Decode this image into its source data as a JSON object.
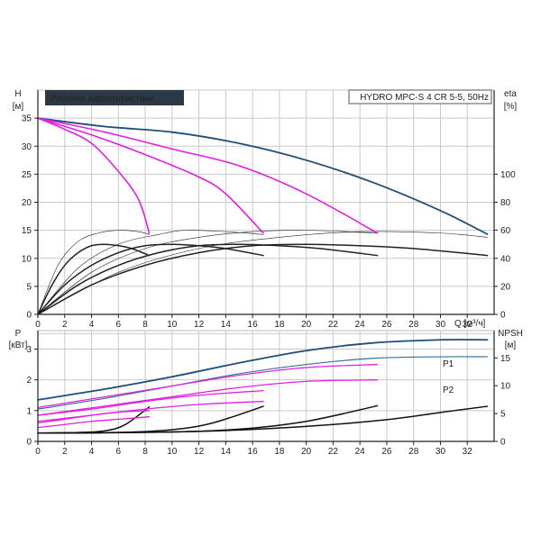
{
  "header": {
    "title": "Рабочие характеристики",
    "model": "HYDRO MPC-S 4 CR 5-5, 50Hz"
  },
  "colors": {
    "pump_line": "#1f4e79",
    "p2_line": "#3a6f95",
    "reduced_speed": "#e020e0",
    "efficiency": "#222222",
    "npsh": "#111111",
    "title_bg": "#2b3947",
    "title_fg": "#ffffff"
  },
  "chart_data": [
    {
      "type": "line",
      "title": "Рабочие характеристики",
      "y_label_name": "H",
      "y_label_unit": "[м]",
      "y2_label_name": "eta",
      "y2_label_unit": "[%]",
      "x_label": "Q [м³/ч]",
      "x_ticks": [
        "0",
        "2",
        "4",
        "6",
        "8",
        "10",
        "12",
        "14",
        "16",
        "18",
        "20",
        "22",
        "24",
        "26",
        "28",
        "30",
        "32"
      ],
      "y_ticks": [
        "0",
        "5",
        "10",
        "15",
        "20",
        "25",
        "30",
        "35"
      ],
      "y2_ticks": [
        "0",
        "20",
        "40",
        "60",
        "80",
        "100"
      ],
      "xlim": [
        0,
        34
      ],
      "ylim": [
        0,
        40
      ],
      "y2lim": [
        0,
        160
      ],
      "grid": true,
      "head_series": [
        {
          "key": "h4",
          "group": "full",
          "x": [
            0,
            5,
            10,
            15,
            20,
            25,
            30,
            33.5
          ],
          "y": [
            35,
            33.5,
            32.5,
            30.5,
            27.5,
            23.5,
            18.5,
            14.3
          ]
        },
        {
          "key": "h3",
          "group": "reduced",
          "x": [
            0,
            5,
            10,
            15,
            20,
            25.3
          ],
          "y": [
            35,
            32.5,
            29.5,
            26.5,
            21.5,
            14.5
          ]
        },
        {
          "key": "h2",
          "group": "reduced",
          "x": [
            0,
            4,
            8,
            12,
            14,
            16.8
          ],
          "y": [
            35,
            32,
            28.5,
            24.5,
            21.5,
            14.5
          ]
        },
        {
          "key": "h1",
          "group": "reduced",
          "x": [
            0,
            2,
            4,
            6,
            7.5,
            8.3
          ],
          "y": [
            35,
            33,
            30.5,
            25.5,
            20.5,
            14.5
          ]
        }
      ],
      "efficiency_series": [
        {
          "key": "e1",
          "x": [
            0,
            1,
            2,
            3,
            4,
            5,
            6,
            7,
            8.3
          ],
          "y": [
            0,
            20,
            35,
            44,
            49,
            50,
            49,
            47,
            42
          ]
        },
        {
          "key": "e2",
          "x": [
            0,
            2,
            4,
            6,
            8,
            10,
            12,
            14,
            16.8
          ],
          "y": [
            0,
            21,
            35,
            44,
            49,
            50,
            49,
            47,
            42
          ]
        },
        {
          "key": "e3",
          "x": [
            0,
            3,
            6,
            9,
            12,
            15,
            18,
            21,
            25.3
          ],
          "y": [
            0,
            21,
            35,
            44,
            49,
            50,
            49,
            47,
            42
          ]
        },
        {
          "key": "e4",
          "x": [
            0,
            4,
            8,
            12,
            16,
            20,
            24,
            28,
            33.5
          ],
          "y": [
            0,
            21,
            35,
            44,
            49,
            50,
            49,
            47,
            42
          ]
        },
        {
          "key": "t1",
          "x": [
            0,
            1.5,
            3,
            4.5,
            6,
            7.5,
            8.3
          ],
          "y": [
            0,
            35,
            52,
            58,
            60,
            59,
            57
          ]
        },
        {
          "key": "t2",
          "x": [
            0,
            3,
            6,
            9,
            11,
            14,
            16.8
          ],
          "y": [
            0,
            33,
            50,
            57,
            60,
            59,
            57
          ]
        },
        {
          "key": "t3",
          "x": [
            0,
            4,
            8,
            12,
            16,
            20,
            25.3
          ],
          "y": [
            0,
            30,
            47,
            55,
            59,
            60,
            58
          ]
        },
        {
          "key": "t4",
          "x": [
            0,
            6,
            12,
            18,
            24,
            30,
            33.5
          ],
          "y": [
            0,
            30,
            47,
            55,
            59,
            58,
            55
          ]
        }
      ]
    },
    {
      "type": "line",
      "y_label_name": "P",
      "y_label_unit": "[кВт]",
      "y2_label_name": "NPSH",
      "y2_label_unit": "[м]",
      "x_ticks": [
        "0",
        "2",
        "4",
        "6",
        "8",
        "10",
        "12",
        "14",
        "16",
        "18",
        "20",
        "22",
        "24",
        "26",
        "28",
        "30",
        "32"
      ],
      "y_ticks": [
        "0",
        "1",
        "2",
        "3"
      ],
      "y2_ticks": [
        "0",
        "5",
        "10",
        "15"
      ],
      "xlim": [
        0,
        34
      ],
      "ylim": [
        0,
        3.6
      ],
      "y2lim": [
        0,
        19.9
      ],
      "grid": true,
      "series_labels": {
        "P1": "P1",
        "P2": "P2"
      },
      "power_series": [
        {
          "key": "P1",
          "group": "full",
          "x": [
            0,
            5,
            10,
            15,
            20,
            25,
            30,
            33.5
          ],
          "y": [
            1.35,
            1.7,
            2.1,
            2.55,
            2.95,
            3.2,
            3.3,
            3.3
          ]
        },
        {
          "key": "P2",
          "group": "full_p2",
          "x": [
            0,
            5,
            10,
            15,
            20,
            25,
            30,
            33.5
          ],
          "y": [
            1.05,
            1.4,
            1.8,
            2.2,
            2.5,
            2.7,
            2.75,
            2.75
          ]
        },
        {
          "key": "p3a",
          "group": "reduced",
          "x": [
            0,
            5,
            10,
            15,
            20,
            25.3
          ],
          "y": [
            1.1,
            1.45,
            1.8,
            2.15,
            2.4,
            2.5
          ]
        },
        {
          "key": "p3b",
          "group": "reduced",
          "x": [
            0,
            5,
            10,
            15,
            20,
            25.3
          ],
          "y": [
            0.85,
            1.15,
            1.45,
            1.75,
            1.95,
            2.0
          ]
        },
        {
          "key": "p2a",
          "group": "reduced",
          "x": [
            0,
            4,
            8,
            12,
            16.8
          ],
          "y": [
            0.85,
            1.05,
            1.3,
            1.5,
            1.65
          ]
        },
        {
          "key": "p2b",
          "group": "reduced",
          "x": [
            0,
            4,
            8,
            12,
            16.8
          ],
          "y": [
            0.65,
            0.85,
            1.05,
            1.2,
            1.3
          ]
        },
        {
          "key": "p1a",
          "group": "reduced",
          "x": [
            0,
            2,
            4,
            6,
            8.3
          ],
          "y": [
            0.6,
            0.72,
            0.85,
            0.95,
            1.0
          ]
        },
        {
          "key": "p1b",
          "group": "reduced",
          "x": [
            0,
            2,
            4,
            6,
            8.3
          ],
          "y": [
            0.45,
            0.55,
            0.65,
            0.72,
            0.8
          ]
        }
      ],
      "npsh_series": [
        {
          "key": "n1",
          "x": [
            0,
            3,
            5,
            6.5,
            8.3
          ],
          "y": [
            1.5,
            1.6,
            1.9,
            3.0,
            6.2
          ]
        },
        {
          "key": "n2",
          "x": [
            0,
            6,
            10,
            13,
            16.8
          ],
          "y": [
            1.5,
            1.6,
            2.1,
            3.3,
            6.3
          ]
        },
        {
          "key": "n3",
          "x": [
            0,
            9,
            15,
            20,
            25.3
          ],
          "y": [
            1.5,
            1.65,
            2.2,
            3.6,
            6.4
          ]
        },
        {
          "key": "n4",
          "x": [
            0,
            12,
            20,
            26,
            30,
            33.5
          ],
          "y": [
            1.5,
            1.8,
            2.7,
            3.9,
            5.2,
            6.3
          ]
        }
      ]
    }
  ]
}
